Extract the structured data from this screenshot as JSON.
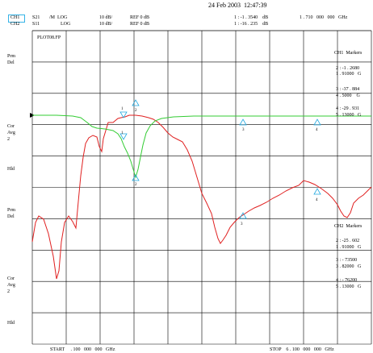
{
  "header": {
    "date": "24 Feb 2003  12:47:39",
    "ch1": {
      "label": "CH1",
      "param": "S21",
      "format": "/M  LOG",
      "scale": "10 dB/",
      "ref": "REF 0 dB"
    },
    "ch2": {
      "label": "CH2",
      "param": "S11",
      "format": "LOG",
      "scale": "10 dB/",
      "ref": "REF 0 dB"
    },
    "marker_readout_1": "1 : -1 . 3540    dB",
    "marker_readout_2": "1 : -16 . 235    dB",
    "marker_freq": "1 . 710   000   000   GHz",
    "file": "PLOT08.FP"
  },
  "left_labels": {
    "prm1": "Prm",
    "del1": "Del",
    "cor1": "Cor",
    "avg1": "Avg",
    "two1": "2",
    "hld1": "Hld",
    "prm2": "Prm",
    "del2": "Del",
    "cor2": "Cor",
    "avg2": "Avg",
    "two2": "2",
    "hld2": "Hld"
  },
  "ch1_markers": {
    "title": "CH1  Markers",
    "m2": "2 : -1 . 2680",
    "m2f": "1 . 91000   G",
    "m3": "3 : -37 . 884",
    "m3f": "4 . 5000    G",
    "m4": "4 : -29 . 931",
    "m4f": "5 . 13000   G"
  },
  "ch2_markers": {
    "title": "CH2  Markers",
    "m2": "2 : -25 . 602",
    "m2f": "1 . 91000   G",
    "m3": "3 : - 73500",
    "m3f": "3 . 82000   G",
    "m4": "4 : - 76200",
    "m4f": "5 . 13000   G"
  },
  "footer": {
    "start": "START     . 100   000   000   GHz",
    "stop": "STOP    6 . 100   000   000   GHz"
  },
  "markers_plot": {
    "m1_top": "1",
    "m2_top": "2",
    "m3_top": "3",
    "m4_top": "4",
    "m1_mid": "1",
    "m2_mid": "2",
    "m3_low": "3",
    "m4_low": "4"
  },
  "colors": {
    "ch1_trace": "#e02020",
    "ch2_trace": "#33cc33",
    "marker": "#20a8e0",
    "grid": "#000000"
  }
}
